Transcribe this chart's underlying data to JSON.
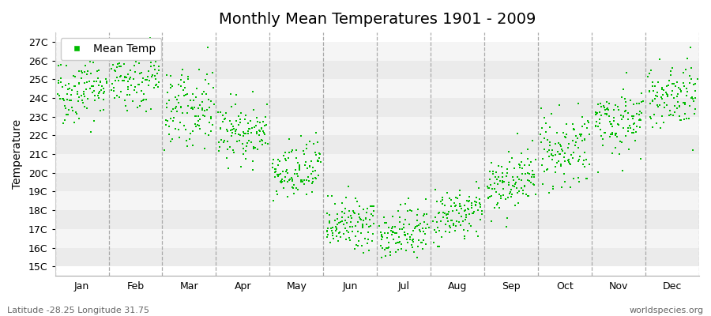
{
  "title": "Monthly Mean Temperatures 1901 - 2009",
  "ylabel": "Temperature",
  "ylim": [
    14.5,
    27.5
  ],
  "yticks": [
    15,
    16,
    17,
    18,
    19,
    20,
    21,
    22,
    23,
    24,
    25,
    26,
    27
  ],
  "ytick_labels": [
    "15C",
    "16C",
    "17C",
    "18C",
    "19C",
    "20C",
    "21C",
    "22C",
    "23C",
    "24C",
    "25C",
    "26C",
    "27C"
  ],
  "month_labels": [
    "Jan",
    "Feb",
    "Mar",
    "Apr",
    "May",
    "Jun",
    "Jul",
    "Aug",
    "Sep",
    "Oct",
    "Nov",
    "Dec"
  ],
  "marker_color": "#00BB00",
  "band_colors_h": [
    "#EBEBEB",
    "#F5F5F5"
  ],
  "vline_color": "#AAAAAA",
  "footer_left": "Latitude -28.25 Longitude 31.75",
  "footer_right": "worldspecies.org",
  "legend_label": "Mean Temp",
  "monthly_means": [
    24.5,
    25.0,
    23.5,
    22.2,
    20.0,
    17.2,
    16.8,
    17.8,
    19.5,
    21.2,
    22.8,
    24.2
  ],
  "monthly_stds": [
    0.9,
    0.9,
    1.0,
    0.8,
    0.8,
    0.7,
    0.7,
    0.7,
    0.8,
    0.9,
    0.9,
    0.9
  ],
  "monthly_trends": [
    0.003,
    0.003,
    0.003,
    0.003,
    0.003,
    0.003,
    0.003,
    0.003,
    0.003,
    0.003,
    0.003,
    0.003
  ],
  "n_years": 109,
  "title_fontsize": 14,
  "axis_fontsize": 10,
  "tick_fontsize": 9,
  "footer_fontsize": 8
}
